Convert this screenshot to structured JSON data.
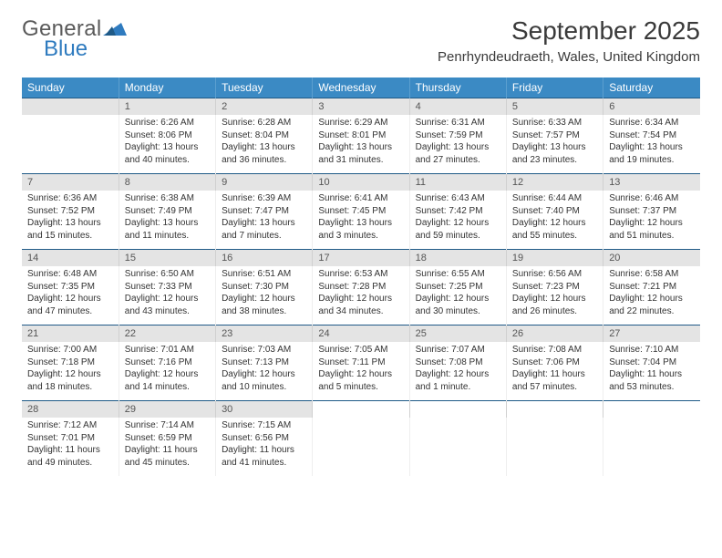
{
  "logo": {
    "text1": "General",
    "text2": "Blue",
    "mark_color": "#2f7bbf"
  },
  "title": "September 2025",
  "location": "Penrhyndeudraeth, Wales, United Kingdom",
  "colors": {
    "header_bg": "#3b8ac4",
    "header_text": "#ffffff",
    "daynum_bg": "#e4e4e4",
    "divider": "#1f5a87"
  },
  "daysOfWeek": [
    "Sunday",
    "Monday",
    "Tuesday",
    "Wednesday",
    "Thursday",
    "Friday",
    "Saturday"
  ],
  "weeks": [
    [
      null,
      {
        "n": "1",
        "sr": "6:26 AM",
        "ss": "8:06 PM",
        "dl": "13 hours and 40 minutes."
      },
      {
        "n": "2",
        "sr": "6:28 AM",
        "ss": "8:04 PM",
        "dl": "13 hours and 36 minutes."
      },
      {
        "n": "3",
        "sr": "6:29 AM",
        "ss": "8:01 PM",
        "dl": "13 hours and 31 minutes."
      },
      {
        "n": "4",
        "sr": "6:31 AM",
        "ss": "7:59 PM",
        "dl": "13 hours and 27 minutes."
      },
      {
        "n": "5",
        "sr": "6:33 AM",
        "ss": "7:57 PM",
        "dl": "13 hours and 23 minutes."
      },
      {
        "n": "6",
        "sr": "6:34 AM",
        "ss": "7:54 PM",
        "dl": "13 hours and 19 minutes."
      }
    ],
    [
      {
        "n": "7",
        "sr": "6:36 AM",
        "ss": "7:52 PM",
        "dl": "13 hours and 15 minutes."
      },
      {
        "n": "8",
        "sr": "6:38 AM",
        "ss": "7:49 PM",
        "dl": "13 hours and 11 minutes."
      },
      {
        "n": "9",
        "sr": "6:39 AM",
        "ss": "7:47 PM",
        "dl": "13 hours and 7 minutes."
      },
      {
        "n": "10",
        "sr": "6:41 AM",
        "ss": "7:45 PM",
        "dl": "13 hours and 3 minutes."
      },
      {
        "n": "11",
        "sr": "6:43 AM",
        "ss": "7:42 PM",
        "dl": "12 hours and 59 minutes."
      },
      {
        "n": "12",
        "sr": "6:44 AM",
        "ss": "7:40 PM",
        "dl": "12 hours and 55 minutes."
      },
      {
        "n": "13",
        "sr": "6:46 AM",
        "ss": "7:37 PM",
        "dl": "12 hours and 51 minutes."
      }
    ],
    [
      {
        "n": "14",
        "sr": "6:48 AM",
        "ss": "7:35 PM",
        "dl": "12 hours and 47 minutes."
      },
      {
        "n": "15",
        "sr": "6:50 AM",
        "ss": "7:33 PM",
        "dl": "12 hours and 43 minutes."
      },
      {
        "n": "16",
        "sr": "6:51 AM",
        "ss": "7:30 PM",
        "dl": "12 hours and 38 minutes."
      },
      {
        "n": "17",
        "sr": "6:53 AM",
        "ss": "7:28 PM",
        "dl": "12 hours and 34 minutes."
      },
      {
        "n": "18",
        "sr": "6:55 AM",
        "ss": "7:25 PM",
        "dl": "12 hours and 30 minutes."
      },
      {
        "n": "19",
        "sr": "6:56 AM",
        "ss": "7:23 PM",
        "dl": "12 hours and 26 minutes."
      },
      {
        "n": "20",
        "sr": "6:58 AM",
        "ss": "7:21 PM",
        "dl": "12 hours and 22 minutes."
      }
    ],
    [
      {
        "n": "21",
        "sr": "7:00 AM",
        "ss": "7:18 PM",
        "dl": "12 hours and 18 minutes."
      },
      {
        "n": "22",
        "sr": "7:01 AM",
        "ss": "7:16 PM",
        "dl": "12 hours and 14 minutes."
      },
      {
        "n": "23",
        "sr": "7:03 AM",
        "ss": "7:13 PM",
        "dl": "12 hours and 10 minutes."
      },
      {
        "n": "24",
        "sr": "7:05 AM",
        "ss": "7:11 PM",
        "dl": "12 hours and 5 minutes."
      },
      {
        "n": "25",
        "sr": "7:07 AM",
        "ss": "7:08 PM",
        "dl": "12 hours and 1 minute."
      },
      {
        "n": "26",
        "sr": "7:08 AM",
        "ss": "7:06 PM",
        "dl": "11 hours and 57 minutes."
      },
      {
        "n": "27",
        "sr": "7:10 AM",
        "ss": "7:04 PM",
        "dl": "11 hours and 53 minutes."
      }
    ],
    [
      {
        "n": "28",
        "sr": "7:12 AM",
        "ss": "7:01 PM",
        "dl": "11 hours and 49 minutes."
      },
      {
        "n": "29",
        "sr": "7:14 AM",
        "ss": "6:59 PM",
        "dl": "11 hours and 45 minutes."
      },
      {
        "n": "30",
        "sr": "7:15 AM",
        "ss": "6:56 PM",
        "dl": "11 hours and 41 minutes."
      },
      null,
      null,
      null,
      null
    ]
  ],
  "labels": {
    "sunrise": "Sunrise: ",
    "sunset": "Sunset: ",
    "daylight": "Daylight: "
  }
}
